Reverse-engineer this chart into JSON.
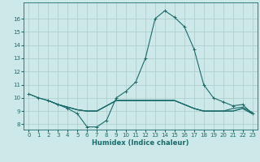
{
  "xlabel": "Humidex (Indice chaleur)",
  "bg_color": "#cce8e8",
  "grid_color": "#aacccc",
  "line_color": "#1a6b6b",
  "xlim": [
    -0.5,
    23.5
  ],
  "ylim": [
    7.6,
    17.2
  ],
  "xticks": [
    0,
    1,
    2,
    3,
    4,
    5,
    6,
    7,
    8,
    9,
    10,
    11,
    12,
    13,
    14,
    15,
    16,
    17,
    18,
    19,
    20,
    21,
    22,
    23
  ],
  "yticks": [
    8,
    9,
    10,
    11,
    12,
    13,
    14,
    15,
    16
  ],
  "line1_x": [
    0,
    1,
    2,
    3,
    4,
    5,
    6,
    7,
    8,
    9,
    10,
    11,
    12,
    13,
    14,
    15,
    16,
    17,
    18,
    19,
    20,
    21,
    22,
    23
  ],
  "line1_y": [
    10.3,
    10.0,
    9.8,
    9.5,
    9.2,
    8.8,
    7.8,
    7.8,
    8.3,
    10.0,
    10.5,
    11.2,
    13.0,
    16.0,
    16.6,
    16.1,
    15.4,
    13.7,
    11.0,
    10.0,
    9.7,
    9.4,
    9.5,
    8.8
  ],
  "line2_x": [
    0,
    1,
    2,
    3,
    4,
    5,
    6,
    7,
    8,
    9,
    10,
    11,
    12,
    13,
    14,
    15,
    16,
    17,
    18,
    19,
    20,
    21,
    22,
    23
  ],
  "line2_y": [
    10.3,
    10.0,
    9.8,
    9.5,
    9.3,
    9.1,
    9.0,
    9.0,
    9.4,
    9.8,
    9.8,
    9.8,
    9.8,
    9.8,
    9.8,
    9.8,
    9.5,
    9.2,
    9.0,
    9.0,
    9.0,
    9.0,
    9.2,
    8.8
  ],
  "line3_x": [
    2,
    3,
    4,
    5,
    6,
    7,
    8,
    9,
    10,
    11,
    12,
    13,
    14,
    15,
    16,
    17,
    18,
    19,
    20,
    21,
    22,
    23
  ],
  "line3_y": [
    9.8,
    9.5,
    9.3,
    9.1,
    9.0,
    9.0,
    9.4,
    9.8,
    9.8,
    9.8,
    9.8,
    9.8,
    9.8,
    9.8,
    9.5,
    9.2,
    9.0,
    9.0,
    9.0,
    9.0,
    9.2,
    8.8
  ],
  "line4_x": [
    2,
    3,
    4,
    5,
    6,
    7,
    8,
    9,
    10,
    11,
    12,
    13,
    14,
    15,
    16,
    17,
    18,
    19,
    20,
    21,
    22,
    23
  ],
  "line4_y": [
    9.8,
    9.5,
    9.3,
    9.1,
    9.0,
    9.0,
    9.4,
    9.8,
    9.8,
    9.8,
    9.8,
    9.8,
    9.8,
    9.8,
    9.5,
    9.2,
    9.0,
    9.0,
    9.0,
    9.2,
    9.3,
    8.9
  ]
}
